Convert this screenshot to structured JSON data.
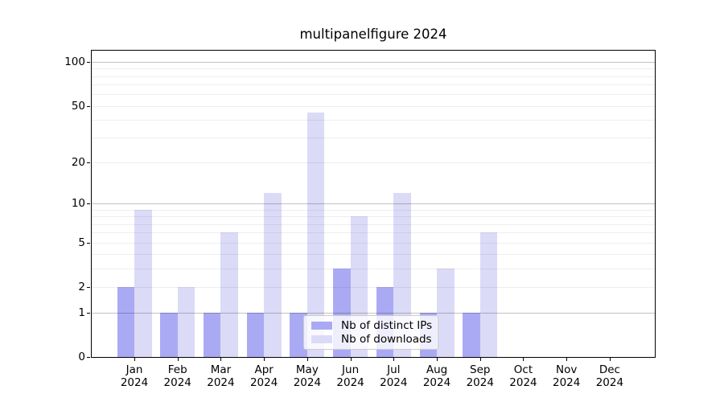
{
  "chart_data": {
    "type": "bar",
    "title": "multipanelfigure 2024",
    "year_label": "2024",
    "categories": [
      "Jan",
      "Feb",
      "Mar",
      "Apr",
      "May",
      "Jun",
      "Jul",
      "Aug",
      "Sep",
      "Oct",
      "Nov",
      "Dec"
    ],
    "series": [
      {
        "name": "Nb of distinct IPs",
        "color": "#aaaaf4",
        "values": [
          2,
          1,
          1,
          1,
          1,
          3,
          2,
          1,
          1,
          0,
          0,
          0
        ]
      },
      {
        "name": "Nb of downloads",
        "color": "#dbdbf7",
        "values": [
          9,
          2,
          6,
          12,
          45,
          8,
          12,
          3,
          6,
          0,
          0,
          0
        ]
      }
    ],
    "y_axis": {
      "scale": "log1p",
      "tick_values": [
        0,
        1,
        2,
        5,
        10,
        20,
        50,
        100
      ],
      "tick_labels": [
        "0",
        "1",
        "2",
        "5",
        "10",
        "20",
        "50",
        "100"
      ],
      "major_gridlines": [
        1,
        10,
        100
      ],
      "minor_gridlines": [
        2,
        3,
        4,
        5,
        6,
        7,
        8,
        9,
        20,
        30,
        40,
        50,
        60,
        70,
        80,
        90
      ],
      "ylim": [
        0,
        123
      ],
      "grid": "on"
    },
    "legend": {
      "position": "lower-center-inside",
      "entries": [
        "Nb of distinct IPs",
        "Nb of downloads"
      ]
    }
  },
  "colors": {
    "bar_distinct_ips": "#aaaaf4",
    "bar_downloads": "#dbdbf7",
    "axis": "#000000",
    "legend_border": "#cccccc",
    "background": "#ffffff"
  }
}
